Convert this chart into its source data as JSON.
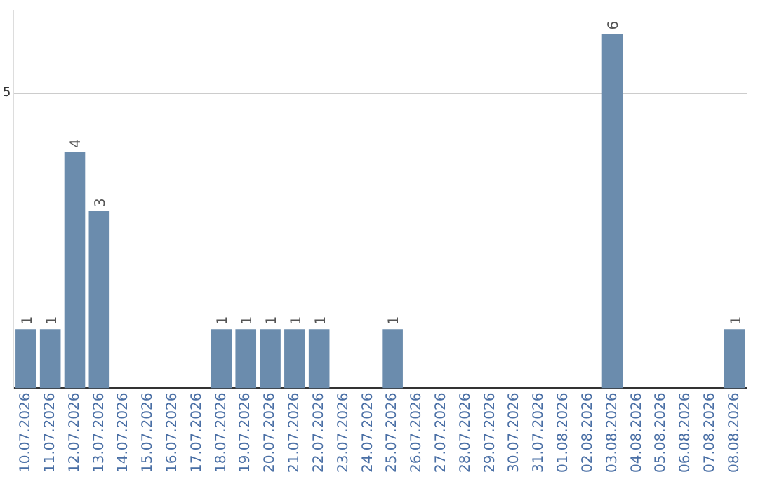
{
  "chart_data": {
    "type": "bar",
    "categories": [
      "10.07.2026",
      "11.07.2026",
      "12.07.2026",
      "13.07.2026",
      "14.07.2026",
      "15.07.2026",
      "16.07.2026",
      "17.07.2026",
      "18.07.2026",
      "19.07.2026",
      "20.07.2026",
      "21.07.2026",
      "22.07.2026",
      "23.07.2026",
      "24.07.2026",
      "25.07.2026",
      "26.07.2026",
      "27.07.2026",
      "28.07.2026",
      "29.07.2026",
      "30.07.2026",
      "31.07.2026",
      "01.08.2026",
      "02.08.2026",
      "03.08.2026",
      "04.08.2026",
      "05.08.2026",
      "06.08.2026",
      "07.08.2026",
      "08.08.2026"
    ],
    "values": [
      1,
      1,
      4,
      3,
      0,
      0,
      0,
      0,
      1,
      1,
      1,
      1,
      1,
      0,
      0,
      1,
      0,
      0,
      0,
      0,
      0,
      0,
      0,
      0,
      6,
      0,
      0,
      0,
      0,
      1
    ],
    "value_labels": [
      "1",
      "1",
      "4",
      "3",
      null,
      null,
      null,
      null,
      "1",
      "1",
      "1",
      "1",
      "1",
      null,
      null,
      "1",
      null,
      null,
      null,
      null,
      null,
      null,
      null,
      null,
      "6",
      null,
      null,
      null,
      null,
      "1"
    ],
    "color": "#6b8cad",
    "ylim": [
      0,
      6.4
    ],
    "yticks": [
      5
    ],
    "grid": "y",
    "legend": false
  }
}
